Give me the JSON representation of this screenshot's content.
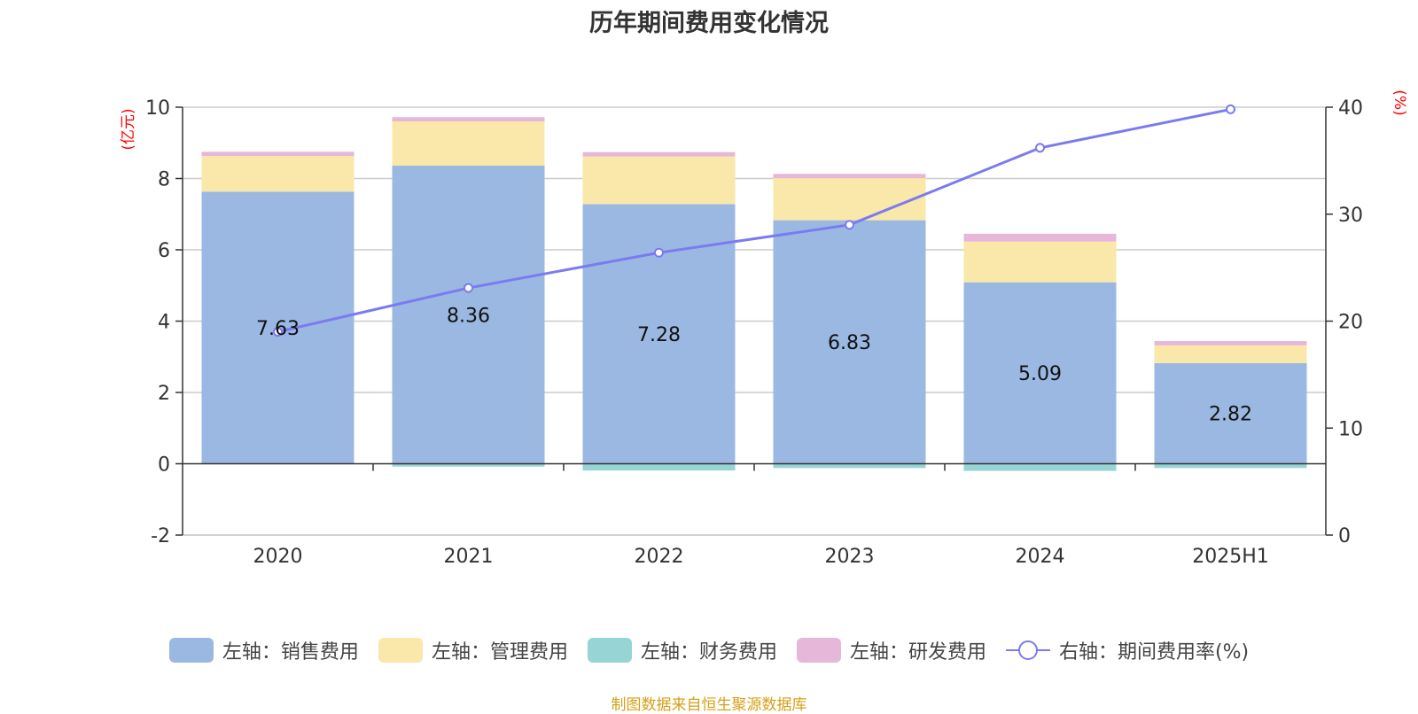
{
  "title": "历年期间费用变化情况",
  "source": "制图数据来自恒生聚源数据库",
  "colors": {
    "sales": "#9bb8e2",
    "admin": "#f9e8a9",
    "finance": "#96d5d4",
    "rd": "#e6b7d9",
    "rate": "#7b7bf0",
    "unit": "#ff0000"
  },
  "chart_data": {
    "type": "bar",
    "categories": [
      "2020",
      "2021",
      "2022",
      "2023",
      "2024",
      "2025H1"
    ],
    "stacked": true,
    "left_axis": {
      "label": "(亿元)",
      "ylim": [
        -2,
        10
      ],
      "ticks": [
        -2,
        0,
        2,
        4,
        6,
        8,
        10
      ]
    },
    "right_axis": {
      "label": "(%)",
      "ylim": [
        0,
        40
      ],
      "ticks": [
        0,
        10,
        20,
        30,
        40
      ]
    },
    "series": [
      {
        "key": "sales",
        "name": "左轴：销售费用",
        "axis": "left",
        "values": [
          7.63,
          8.36,
          7.28,
          6.83,
          5.09,
          2.82
        ],
        "labels": [
          "7.63",
          "8.36",
          "7.28",
          "6.83",
          "5.09",
          "2.82"
        ]
      },
      {
        "key": "admin",
        "name": "左轴：管理费用",
        "axis": "left",
        "values": [
          1.0,
          1.24,
          1.34,
          1.18,
          1.14,
          0.5
        ]
      },
      {
        "key": "finance",
        "name": "左轴：财务费用",
        "axis": "left",
        "values": [
          0.0,
          -0.08,
          -0.19,
          -0.12,
          -0.2,
          -0.12
        ]
      },
      {
        "key": "rd",
        "name": "左轴：研发费用",
        "axis": "left",
        "values": [
          0.12,
          0.12,
          0.12,
          0.12,
          0.22,
          0.12
        ]
      },
      {
        "key": "rate",
        "name": "右轴：期间费用率(%)",
        "type": "line",
        "axis": "right",
        "values": [
          19.0,
          23.1,
          26.4,
          29.0,
          36.2,
          39.8
        ]
      }
    ],
    "grid": true,
    "legend_position": "bottom"
  }
}
